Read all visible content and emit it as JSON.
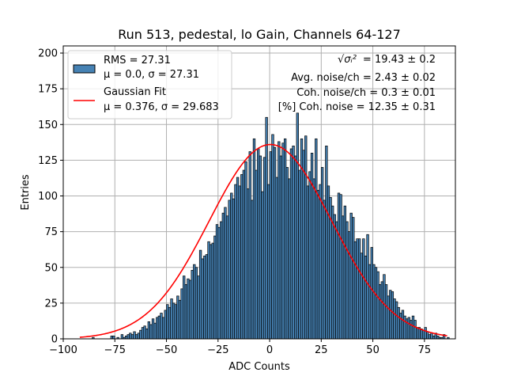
{
  "chart_data": {
    "type": "bar",
    "title": "Run 513, pedestal, lo Gain, Channels 64-127",
    "xlabel": "ADC Counts",
    "ylabel": "Entries",
    "xlim": [
      -100,
      90
    ],
    "ylim": [
      0,
      205
    ],
    "xticks": [
      -100,
      -75,
      -50,
      -25,
      0,
      25,
      50,
      75
    ],
    "yticks": [
      0,
      25,
      50,
      75,
      100,
      125,
      150,
      175,
      200
    ],
    "grid": true,
    "legend_position": "top-left",
    "colors": {
      "bars": "#4682b4",
      "bar_edge": "#000000",
      "fit": "#ff0000",
      "grid": "#b0b0b0"
    },
    "series": [
      {
        "name": "RMS = 27.31",
        "subtitle": "μ = 0.0, σ = 27.31",
        "kind": "histogram",
        "bin_width": 1,
        "x_start": -92,
        "values": [
          0,
          0,
          0,
          0,
          0,
          0,
          1,
          0,
          0,
          0,
          0,
          0,
          0,
          0,
          0,
          2,
          2,
          0,
          1,
          0,
          3,
          1,
          2,
          3,
          4,
          3,
          5,
          3,
          4,
          6,
          8,
          9,
          7,
          12,
          10,
          14,
          11,
          15,
          16,
          18,
          15,
          20,
          24,
          22,
          28,
          25,
          24,
          30,
          27,
          35,
          44,
          38,
          42,
          41,
          48,
          52,
          50,
          44,
          62,
          56,
          58,
          59,
          68,
          66,
          67,
          72,
          80,
          78,
          82,
          88,
          92,
          86,
          97,
          102,
          98,
          108,
          113,
          107,
          115,
          118,
          124,
          105,
          131,
          97,
          140,
          118,
          133,
          128,
          103,
          127,
          155,
          108,
          131,
          143,
          134,
          113,
          138,
          128,
          137,
          140,
          120,
          112,
          133,
          135,
          128,
          158,
          118,
          140,
          132,
          142,
          107,
          117,
          130,
          112,
          140,
          104,
          108,
          120,
          97,
          135,
          107,
          99,
          93,
          87,
          82,
          102,
          101,
          86,
          93,
          82,
          75,
          88,
          85,
          68,
          70,
          70,
          60,
          70,
          58,
          73,
          52,
          64,
          52,
          50,
          47,
          38,
          40,
          45,
          38,
          30,
          34,
          33,
          28,
          26,
          22,
          18,
          20,
          16,
          14,
          15,
          13,
          16,
          13,
          8,
          8,
          7,
          6,
          8,
          5,
          3,
          4,
          2,
          4,
          2,
          1,
          1,
          3,
          0,
          1
        ]
      },
      {
        "name": "Gaussian Fit",
        "subtitle": "μ = 0.376, σ = 29.683",
        "kind": "line",
        "mu": 0.376,
        "sigma": 29.683,
        "amplitude": 136,
        "x_range": [
          -92,
          86
        ]
      }
    ],
    "annotations": {
      "sqrt_label": "√σᵢ²",
      "sqrt_value": "= 19.43 ± 0.2",
      "avg_noise": "Avg. noise/ch = 2.43 ± 0.02",
      "coh_noise": "Coh. noise/ch = 0.3 ± 0.01",
      "coh_percent": "[%] Coh. noise = 12.35 ± 0.31"
    }
  }
}
